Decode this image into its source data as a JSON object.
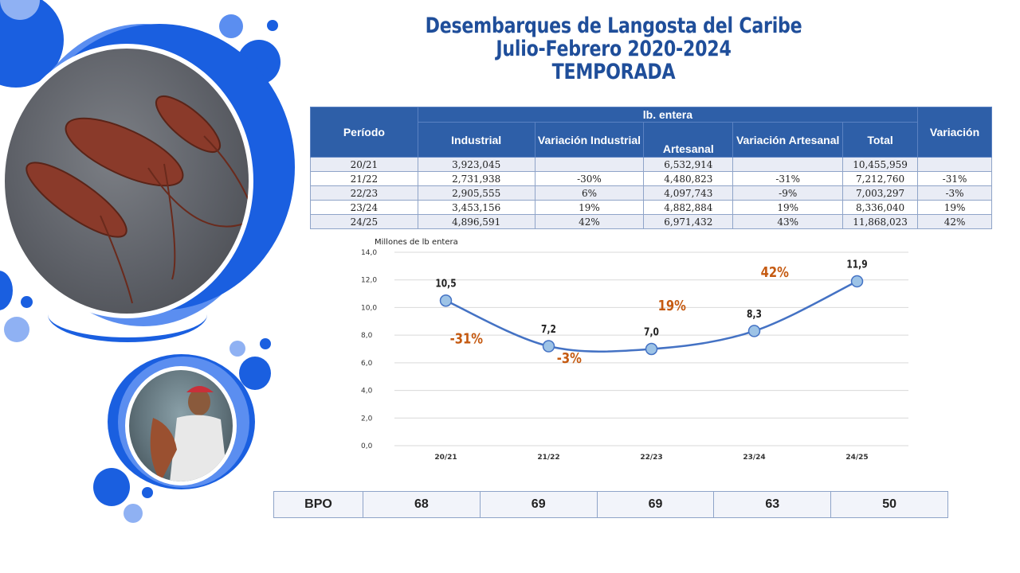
{
  "title": {
    "line1": "Desembarques de Langosta del Caribe",
    "line2": "Julio-Febrero 2020-2024",
    "line3": "TEMPORADA"
  },
  "colors": {
    "accent": "#2e5fa8",
    "title": "#1f4e9a",
    "line": "#4472c4",
    "point": "#9dc3e6",
    "variation": "#c55a11",
    "circle_blue": "#1a5fe0",
    "circle_light": "#5b8ef0"
  },
  "table": {
    "group_header": "lb. entera",
    "headers": {
      "period": "Período",
      "industrial": "Industrial",
      "var_industrial": "Variación Industrial",
      "artesanal": "Artesanal",
      "var_artesanal": "Variación Artesanal",
      "total": "Total",
      "variation": "Variación"
    },
    "rows": [
      {
        "period": "20/21",
        "industrial": "3,923,045",
        "var_industrial": "",
        "artesanal": "6,532,914",
        "var_artesanal": "",
        "total": "10,455,959",
        "variation": ""
      },
      {
        "period": "21/22",
        "industrial": "2,731,938",
        "var_industrial": "-30%",
        "artesanal": "4,480,823",
        "var_artesanal": "-31%",
        "total": "7,212,760",
        "variation": "-31%"
      },
      {
        "period": "22/23",
        "industrial": "2,905,555",
        "var_industrial": "6%",
        "artesanal": "4,097,743",
        "var_artesanal": "-9%",
        "total": "7,003,297",
        "variation": "-3%"
      },
      {
        "period": "23/24",
        "industrial": "3,453,156",
        "var_industrial": "19%",
        "artesanal": "4,882,884",
        "var_artesanal": "19%",
        "total": "8,336,040",
        "variation": "19%"
      },
      {
        "period": "24/25",
        "industrial": "4,896,591",
        "var_industrial": "42%",
        "artesanal": "6,971,432",
        "var_artesanal": "43%",
        "total": "11,868,023",
        "variation": "42%"
      }
    ]
  },
  "chart_data": {
    "type": "line",
    "title": "",
    "ylabel": "Millones de lb entera",
    "xlabel": "",
    "categories": [
      "20/21",
      "21/22",
      "22/23",
      "23/24",
      "24/25"
    ],
    "series": [
      {
        "values": [
          10.5,
          7.2,
          7.0,
          8.3,
          11.9
        ]
      }
    ],
    "data_labels": [
      "10,5",
      "7,2",
      "7,0",
      "8,3",
      "11,9"
    ],
    "variation_labels": [
      {
        "text": "-31%",
        "x": "20/21",
        "y": 7.4
      },
      {
        "text": "-3%",
        "x": "21/22",
        "y": 6.0
      },
      {
        "text": "19%",
        "x": "22/23",
        "y": 9.8
      },
      {
        "text": "42%",
        "x": "23/24",
        "y": 12.2
      }
    ],
    "yticks": [
      "0,0",
      "2,0",
      "4,0",
      "6,0",
      "8,0",
      "10,0",
      "12,0",
      "14,0"
    ],
    "ylim": [
      0,
      14
    ],
    "grid": true,
    "legend": "none"
  },
  "bpo": {
    "label": "BPO",
    "values": [
      "68",
      "69",
      "69",
      "63",
      "50"
    ]
  }
}
